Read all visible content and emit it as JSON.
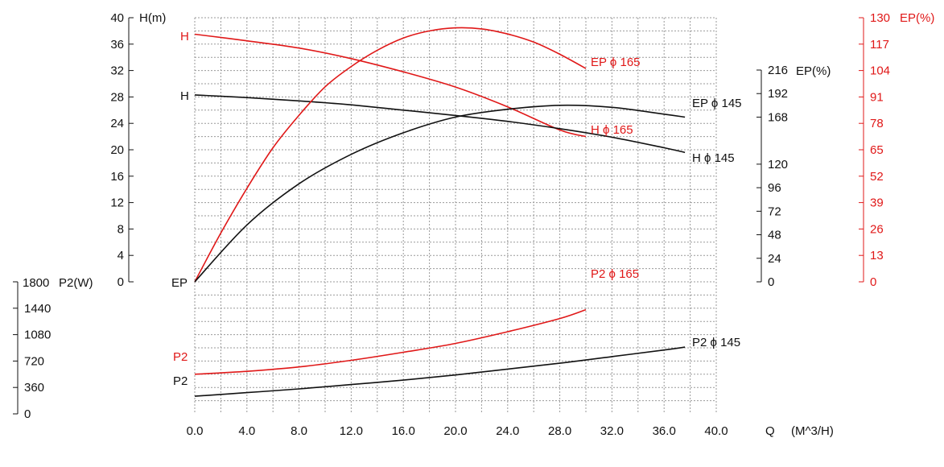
{
  "chart_data": {
    "type": "line",
    "x_axis": {
      "label_q": "Q",
      "label_unit": "(M^3/H)",
      "min": 0,
      "max": 40,
      "tick_labels": [
        "0.0",
        "4.0",
        "8.0",
        "12.0",
        "16.0",
        "20.0",
        "24.0",
        "28.0",
        "32.0",
        "36.0",
        "40.0"
      ]
    },
    "axes": {
      "head": {
        "title": "H(m)",
        "min": 0,
        "max": 40,
        "ticks": [
          "40",
          "36",
          "32",
          "28",
          "24",
          "20",
          "16",
          "12",
          "8",
          "4",
          "0"
        ]
      },
      "power": {
        "title": "P2(W)",
        "min": 0,
        "max": 1800,
        "ticks": [
          "1800",
          "1440",
          "1080",
          "720",
          "360",
          "0"
        ]
      },
      "eff145": {
        "title": "EP(%)",
        "min": 0,
        "max": 216,
        "ticks": [
          "216",
          "192",
          "168",
          "120",
          "96",
          "72",
          "48",
          "24",
          "0"
        ]
      },
      "eff165": {
        "title": "EP(%)",
        "min": 0,
        "max": 130,
        "ticks": [
          "130",
          "117",
          "104",
          "91",
          "78",
          "65",
          "52",
          "39",
          "26",
          "13",
          "0"
        ]
      }
    },
    "series": [
      {
        "name": "H ϕ 165",
        "axis": "head",
        "color": "#e01818",
        "x": [
          0,
          4,
          8,
          12,
          16,
          20,
          24,
          28,
          30
        ],
        "y": [
          37.5,
          36.5,
          35.4,
          33.8,
          31.8,
          29.5,
          26.5,
          23,
          22
        ]
      },
      {
        "name": "H ϕ 145",
        "axis": "head",
        "color": "#111111",
        "x": [
          0,
          4,
          8,
          12,
          16,
          20,
          24,
          28,
          32,
          36,
          37.6
        ],
        "y": [
          28.3,
          27.9,
          27.4,
          26.8,
          26.0,
          25.2,
          24.3,
          23.2,
          21.9,
          20.3,
          19.6
        ]
      },
      {
        "name": "EP ϕ 165",
        "axis": "eff165",
        "color": "#e01818",
        "x": [
          0,
          2,
          4,
          6,
          8,
          10,
          12,
          14,
          16,
          18,
          20,
          22,
          24,
          26,
          28,
          30
        ],
        "y": [
          0,
          24,
          46,
          66,
          82,
          96,
          106,
          114,
          120,
          123.5,
          125,
          124.5,
          122,
          118,
          112,
          105
        ]
      },
      {
        "name": "EP ϕ 145",
        "axis": "eff145",
        "color": "#111111",
        "x": [
          0,
          4,
          8,
          12,
          16,
          20,
          24,
          28,
          32,
          36,
          37.6
        ],
        "y": [
          0,
          58,
          100,
          130,
          152,
          168,
          176,
          180,
          178,
          171,
          168
        ]
      },
      {
        "name": "P2 ϕ 165",
        "axis": "power",
        "color": "#e01818",
        "x": [
          0,
          4,
          8,
          12,
          16,
          20,
          24,
          28,
          30
        ],
        "y": [
          540,
          580,
          640,
          730,
          840,
          960,
          1120,
          1300,
          1420
        ]
      },
      {
        "name": "P2 ϕ 145",
        "axis": "power",
        "color": "#111111",
        "x": [
          0,
          4,
          8,
          12,
          16,
          20,
          24,
          28,
          32,
          36,
          37.6
        ],
        "y": [
          240,
          290,
          340,
          400,
          460,
          530,
          610,
          690,
          780,
          870,
          910
        ]
      }
    ],
    "annotations": {
      "h_red": "H",
      "h_black": "H",
      "ep_origin": "EP",
      "p2_red": "P2",
      "p2_black": "P2",
      "ep165_end": "EP ϕ 165",
      "h165_end": "H ϕ 165",
      "ep145_end": "EP ϕ 145",
      "h145_end": "H ϕ 145",
      "p2165_end": "P2 ϕ 165",
      "p2145_end": "P2 ϕ 145"
    },
    "grid": true,
    "colors": {
      "red": "#e01818",
      "black": "#111111",
      "grid": "#9a9a9a"
    }
  }
}
